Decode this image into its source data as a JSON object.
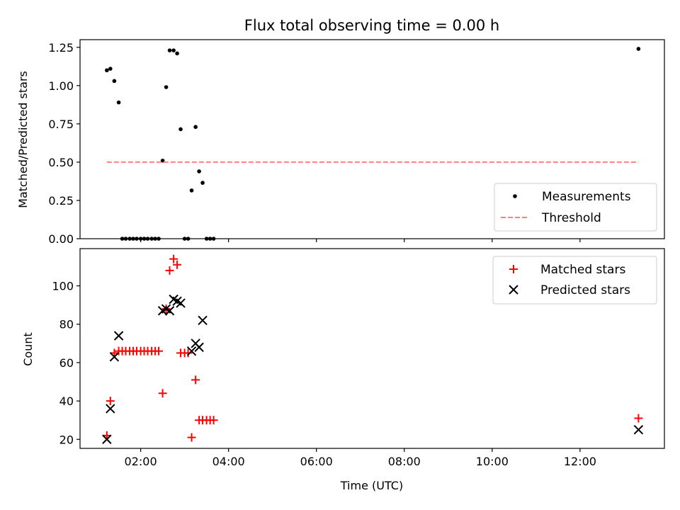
{
  "chart_data": [
    {
      "type": "scatter",
      "title": "Flux total observing time = 0.00 h",
      "xlabel": "",
      "ylabel": "Matched/Predicted stars",
      "xlim": [
        0.62,
        13.92
      ],
      "ylim": [
        0.0,
        1.3
      ],
      "yticks": [
        0.0,
        0.25,
        0.5,
        0.75,
        1.0,
        1.25
      ],
      "ytick_labels": [
        "0.00",
        "0.25",
        "0.50",
        "0.75",
        "1.00",
        "1.25"
      ],
      "legend_position": "lower-right",
      "series": [
        {
          "name": "Measurements",
          "marker": "dot",
          "color": "#000000",
          "x": [
            1.23,
            1.31,
            1.4,
            1.5,
            1.58,
            1.66,
            1.75,
            1.83,
            1.91,
            2.0,
            2.08,
            2.16,
            2.25,
            2.33,
            2.41,
            2.5,
            2.58,
            2.66,
            2.75,
            2.83,
            2.91,
            3.0,
            3.08,
            3.16,
            3.25,
            3.33,
            3.41,
            3.5,
            3.58,
            3.66,
            13.33
          ],
          "y": [
            1.1,
            1.11,
            1.03,
            0.89,
            0.0,
            0.0,
            0.0,
            0.0,
            0.0,
            0.0,
            0.0,
            0.0,
            0.0,
            0.0,
            0.0,
            0.51,
            0.99,
            1.23,
            1.23,
            1.21,
            0.715,
            0.0,
            0.0,
            0.315,
            0.73,
            0.44,
            0.365,
            0.0,
            0.0,
            0.0,
            1.24
          ]
        },
        {
          "name": "Threshold",
          "style": "dashed",
          "color": "#ff8080",
          "x": [
            1.23,
            13.33
          ],
          "y": [
            0.5,
            0.5
          ]
        }
      ]
    },
    {
      "type": "scatter",
      "title": "",
      "xlabel": "Time (UTC)",
      "ylabel": "Count",
      "xlim": [
        0.62,
        13.92
      ],
      "ylim": [
        15.3,
        119.4
      ],
      "yticks": [
        20,
        40,
        60,
        80,
        100
      ],
      "ytick_labels": [
        "20",
        "40",
        "60",
        "80",
        "100"
      ],
      "xticks": [
        2,
        4,
        6,
        8,
        10,
        12
      ],
      "xtick_labels": [
        "02:00",
        "04:00",
        "06:00",
        "08:00",
        "10:00",
        "12:00"
      ],
      "legend_position": "top-right",
      "series": [
        {
          "name": "Matched stars",
          "marker": "plus",
          "color": "#ff0000",
          "x": [
            1.23,
            1.31,
            1.4,
            1.5,
            1.58,
            1.66,
            1.75,
            1.83,
            1.91,
            2.0,
            2.08,
            2.16,
            2.25,
            2.33,
            2.41,
            2.5,
            2.58,
            2.66,
            2.75,
            2.83,
            2.91,
            3.0,
            3.08,
            3.16,
            3.25,
            3.33,
            3.41,
            3.5,
            3.58,
            3.66,
            13.33
          ],
          "y": [
            22,
            40,
            65,
            66,
            66,
            66,
            66,
            66,
            66,
            66,
            66,
            66,
            66,
            66,
            66,
            44,
            88,
            108,
            114,
            111,
            65,
            65,
            65,
            21,
            51,
            30,
            30,
            30,
            30,
            30,
            31
          ]
        },
        {
          "name": "Predicted stars",
          "marker": "x",
          "color": "#000000",
          "x": [
            1.23,
            1.31,
            1.4,
            1.5,
            2.5,
            2.58,
            2.66,
            2.75,
            2.83,
            2.91,
            3.16,
            3.25,
            3.33,
            3.41,
            13.33
          ],
          "y": [
            20,
            36,
            63,
            74,
            87,
            88,
            87,
            93,
            92,
            91,
            66,
            70,
            68,
            82,
            25
          ]
        }
      ]
    }
  ]
}
